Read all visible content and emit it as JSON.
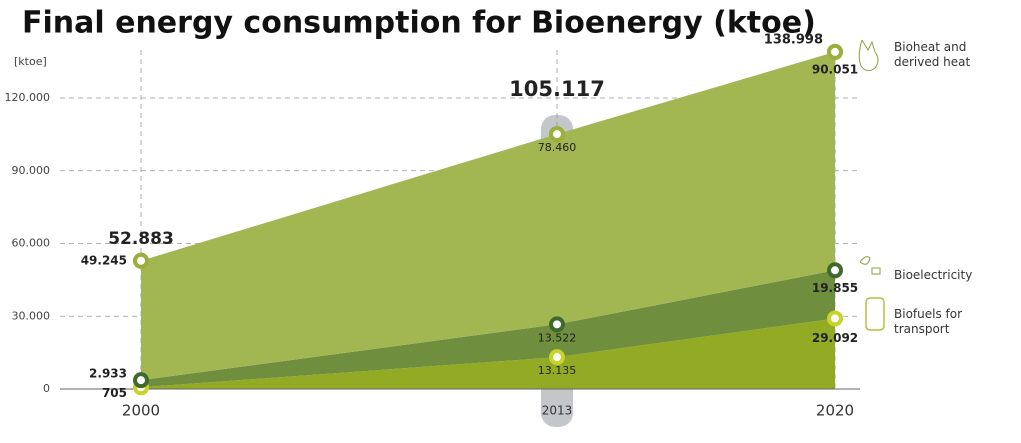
{
  "chart_data": {
    "type": "stacked_area",
    "title": "Final energy consumption for Bioenergy (ktoe)",
    "y_label": "[ktoe]",
    "categories": [
      "2000",
      "2013",
      "2020"
    ],
    "ylim": [
      0,
      140000
    ],
    "yticks": [
      0,
      {
        "value": 30000,
        "label": "30.000"
      },
      {
        "value": 60000,
        "label": "60.000"
      },
      {
        "value": 90000,
        "label": "90.000"
      },
      {
        "value": 120000,
        "label": "120.000"
      }
    ],
    "grid": true,
    "series": [
      {
        "name": "Biofuels for transport",
        "color": "#93aa24",
        "marker_color": "#c9d42a",
        "values": [
          705,
          13135,
          29092
        ],
        "value_labels": [
          "705",
          "13.135",
          "29.092"
        ]
      },
      {
        "name": "Bioelectricity",
        "color": "#6f8f3e",
        "marker_color": "#3e6a2c",
        "values": [
          2933,
          13522,
          19855
        ],
        "value_labels": [
          "2.933",
          "13.522",
          "19.855"
        ]
      },
      {
        "name": "Bioheat and derived heat",
        "color": "#a2b652",
        "marker_color": "#9cae3c",
        "values": [
          49245,
          78460,
          90051
        ],
        "value_labels": [
          "49.245",
          "78.460",
          "90.051"
        ]
      }
    ],
    "totals": {
      "values": [
        52883,
        105117,
        138998
      ],
      "value_labels": [
        "52.883",
        "105.117",
        "138.998"
      ]
    }
  }
}
